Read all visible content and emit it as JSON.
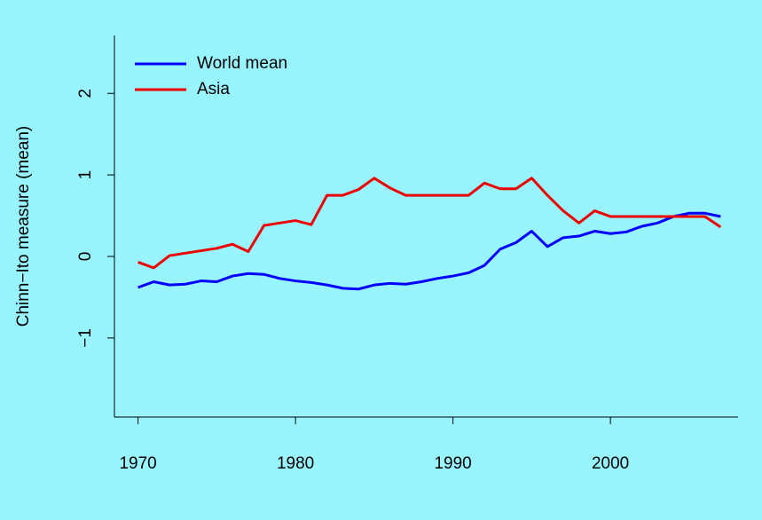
{
  "chart_data": {
    "type": "line",
    "y_label": "Chinn−Ito measure (mean)",
    "x": [
      1970,
      1971,
      1972,
      1973,
      1974,
      1975,
      1976,
      1977,
      1978,
      1979,
      1980,
      1981,
      1982,
      1983,
      1984,
      1985,
      1986,
      1987,
      1988,
      1989,
      1990,
      1991,
      1992,
      1993,
      1994,
      1995,
      1996,
      1997,
      1998,
      1999,
      2000,
      2001,
      2002,
      2003,
      2004,
      2005,
      2006,
      2007
    ],
    "series": [
      {
        "name": "World mean",
        "color": "#0000ff",
        "values": [
          -0.38,
          -0.31,
          -0.35,
          -0.34,
          -0.3,
          -0.31,
          -0.24,
          -0.21,
          -0.22,
          -0.27,
          -0.3,
          -0.32,
          -0.35,
          -0.39,
          -0.4,
          -0.35,
          -0.33,
          -0.34,
          -0.31,
          -0.27,
          -0.24,
          -0.2,
          -0.11,
          0.09,
          0.17,
          0.31,
          0.12,
          0.23,
          0.25,
          0.31,
          0.28,
          0.3,
          0.37,
          0.41,
          0.49,
          0.53,
          0.53,
          0.49
        ]
      },
      {
        "name": "Asia",
        "color": "#ee0000",
        "values": [
          -0.07,
          -0.14,
          0.01,
          0.04,
          0.07,
          0.1,
          0.15,
          0.06,
          0.38,
          0.41,
          0.44,
          0.39,
          0.75,
          0.75,
          0.82,
          0.96,
          0.84,
          0.75,
          0.75,
          0.75,
          0.75,
          0.75,
          0.9,
          0.83,
          0.83,
          0.96,
          0.75,
          0.56,
          0.41,
          0.56,
          0.49,
          0.49,
          0.49,
          0.49,
          0.49,
          0.49,
          0.49,
          0.36
        ]
      }
    ],
    "xlim": [
      1968.5,
      2008.5
    ],
    "xticks": [
      1970,
      1980,
      1990,
      2000
    ],
    "ylim": [
      -1.97,
      2.71
    ],
    "yticks": [
      {
        "value": -1,
        "label": "−1"
      },
      0,
      1,
      2
    ],
    "legend": "top-left",
    "background": "#98f5ff"
  }
}
